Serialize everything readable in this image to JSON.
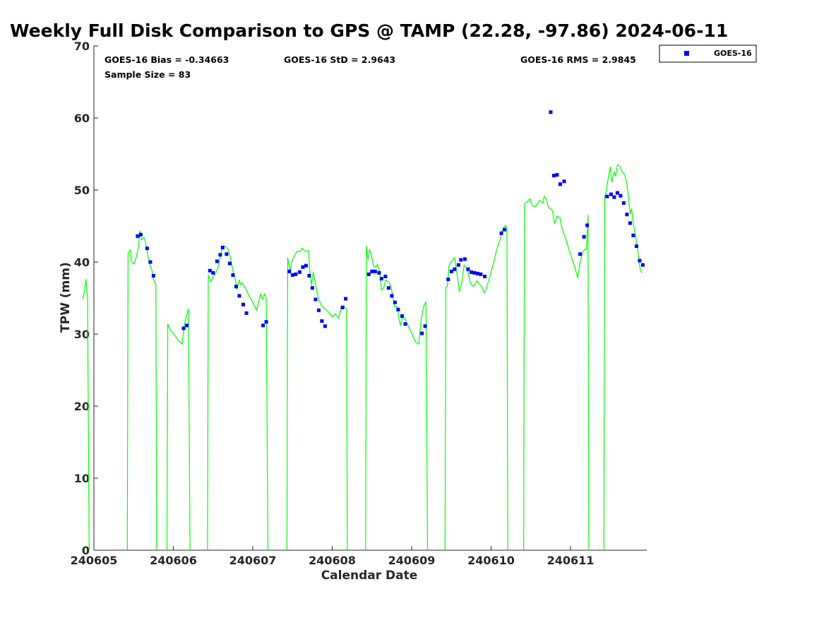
{
  "chart_data": {
    "type": "scatter",
    "title": "Weekly Full Disk Comparison to GPS @ TAMP (22.28, -97.86) 2024-06-11",
    "xlabel": "Calendar Date",
    "ylabel": "TPW (mm)",
    "xlim": [
      0,
      6.95
    ],
    "ylim": [
      0,
      70
    ],
    "yticks": [
      0,
      10,
      20,
      30,
      40,
      50,
      60,
      70
    ],
    "xticks": [
      {
        "pos": 0,
        "label": "240605"
      },
      {
        "pos": 1,
        "label": "240606"
      },
      {
        "pos": 2,
        "label": "240607"
      },
      {
        "pos": 3,
        "label": "240608"
      },
      {
        "pos": 4,
        "label": "240609"
      },
      {
        "pos": 5,
        "label": "240610"
      },
      {
        "pos": 6,
        "label": "240611"
      }
    ],
    "legend": {
      "position": "top-right",
      "entries": [
        {
          "name": "GOES-16",
          "color": "#0000ff",
          "marker": "square"
        }
      ]
    },
    "stats": {
      "bias": "GOES-16 Bias = -0.34663",
      "std": "GOES-16 StD = 2.9643",
      "rms": "GOES-16 RMS = 2.9845",
      "sample": "Sample Size = 83"
    },
    "series": [
      {
        "name": "GOES-16",
        "kind": "scatter",
        "color": "#0000ff",
        "points": [
          [
            0.55,
            43.6
          ],
          [
            0.59,
            43.8
          ],
          [
            0.67,
            41.9
          ],
          [
            0.71,
            40.0
          ],
          [
            0.75,
            38.1
          ],
          [
            1.13,
            30.8
          ],
          [
            1.17,
            31.2
          ],
          [
            1.46,
            38.8
          ],
          [
            1.5,
            38.5
          ],
          [
            1.55,
            40.1
          ],
          [
            1.59,
            41.0
          ],
          [
            1.62,
            42.0
          ],
          [
            1.67,
            41.1
          ],
          [
            1.71,
            39.8
          ],
          [
            1.75,
            38.2
          ],
          [
            1.79,
            36.6
          ],
          [
            1.83,
            35.3
          ],
          [
            1.88,
            34.1
          ],
          [
            1.92,
            32.9
          ],
          [
            2.13,
            31.2
          ],
          [
            2.17,
            31.7
          ],
          [
            2.46,
            38.7
          ],
          [
            2.5,
            38.2
          ],
          [
            2.54,
            38.3
          ],
          [
            2.59,
            38.6
          ],
          [
            2.63,
            39.3
          ],
          [
            2.67,
            39.5
          ],
          [
            2.71,
            38.1
          ],
          [
            2.75,
            36.4
          ],
          [
            2.79,
            34.8
          ],
          [
            2.83,
            33.3
          ],
          [
            2.87,
            31.8
          ],
          [
            2.91,
            31.1
          ],
          [
            3.13,
            33.7
          ],
          [
            3.17,
            34.9
          ],
          [
            3.46,
            38.3
          ],
          [
            3.5,
            38.7
          ],
          [
            3.54,
            38.7
          ],
          [
            3.59,
            38.5
          ],
          [
            3.62,
            37.7
          ],
          [
            3.67,
            38.0
          ],
          [
            3.71,
            36.4
          ],
          [
            3.75,
            35.3
          ],
          [
            3.79,
            34.4
          ],
          [
            3.83,
            33.4
          ],
          [
            3.88,
            32.5
          ],
          [
            3.92,
            31.4
          ],
          [
            4.13,
            30.1
          ],
          [
            4.17,
            31.1
          ],
          [
            4.46,
            37.6
          ],
          [
            4.5,
            38.7
          ],
          [
            4.54,
            39.0
          ],
          [
            4.59,
            39.6
          ],
          [
            4.62,
            40.3
          ],
          [
            4.67,
            40.4
          ],
          [
            4.71,
            39.0
          ],
          [
            4.75,
            38.6
          ],
          [
            4.79,
            38.5
          ],
          [
            4.83,
            38.4
          ],
          [
            4.87,
            38.3
          ],
          [
            4.92,
            38.0
          ],
          [
            5.13,
            44.0
          ],
          [
            5.17,
            44.5
          ],
          [
            5.75,
            60.8
          ],
          [
            5.79,
            52.0
          ],
          [
            5.83,
            52.1
          ],
          [
            5.87,
            50.8
          ],
          [
            5.92,
            51.2
          ],
          [
            6.12,
            41.1
          ],
          [
            6.17,
            43.5
          ],
          [
            6.21,
            45.1
          ],
          [
            6.46,
            49.1
          ],
          [
            6.51,
            49.4
          ],
          [
            6.55,
            49.0
          ],
          [
            6.59,
            49.6
          ],
          [
            6.63,
            49.2
          ],
          [
            6.67,
            48.2
          ],
          [
            6.71,
            46.6
          ],
          [
            6.75,
            45.4
          ],
          [
            6.79,
            43.7
          ],
          [
            6.83,
            42.2
          ],
          [
            6.87,
            40.2
          ],
          [
            6.91,
            39.6
          ]
        ]
      },
      {
        "name": "",
        "kind": "line",
        "color": "#00ff00",
        "segments": [
          [
            [
              -0.14,
              34.9
            ],
            [
              -0.12,
              35.8
            ],
            [
              -0.1,
              37.6
            ],
            [
              -0.09,
              36.0
            ],
            [
              -0.08,
              35.3
            ],
            [
              -0.06,
              0
            ]
          ],
          [
            [
              0.42,
              0
            ],
            [
              0.43,
              41.2
            ],
            [
              0.46,
              41.7
            ],
            [
              0.47,
              40.1
            ],
            [
              0.5,
              39.7
            ],
            [
              0.53,
              40.5
            ],
            [
              0.56,
              42.1
            ],
            [
              0.58,
              44.3
            ],
            [
              0.6,
              43.1
            ],
            [
              0.63,
              43.4
            ],
            [
              0.65,
              42.7
            ],
            [
              0.67,
              41.4
            ],
            [
              0.7,
              39.7
            ],
            [
              0.73,
              38.9
            ],
            [
              0.75,
              37.6
            ],
            [
              0.78,
              36.8
            ],
            [
              0.79,
              0
            ]
          ],
          [
            [
              0.92,
              0
            ],
            [
              0.93,
              31.4
            ],
            [
              0.96,
              30.6
            ],
            [
              1.0,
              30.1
            ],
            [
              1.04,
              29.5
            ],
            [
              1.08,
              28.9
            ],
            [
              1.11,
              28.6
            ],
            [
              1.14,
              31.4
            ],
            [
              1.17,
              32.7
            ],
            [
              1.19,
              33.5
            ],
            [
              1.21,
              0
            ]
          ],
          [
            [
              1.43,
              0
            ],
            [
              1.44,
              38.2
            ],
            [
              1.47,
              37.3
            ],
            [
              1.5,
              37.9
            ],
            [
              1.54,
              38.6
            ],
            [
              1.57,
              39.5
            ],
            [
              1.6,
              41.3
            ],
            [
              1.63,
              42.3
            ],
            [
              1.66,
              42.1
            ],
            [
              1.69,
              41.8
            ],
            [
              1.72,
              40.6
            ],
            [
              1.75,
              38.8
            ],
            [
              1.78,
              37.6
            ],
            [
              1.8,
              36.2
            ],
            [
              1.83,
              37.5
            ],
            [
              1.85,
              36.8
            ],
            [
              1.87,
              37.1
            ],
            [
              1.91,
              36.3
            ],
            [
              1.95,
              35.4
            ],
            [
              2.0,
              34.4
            ],
            [
              2.05,
              33.3
            ],
            [
              2.08,
              34.8
            ],
            [
              2.1,
              35.6
            ],
            [
              2.12,
              34.8
            ],
            [
              2.15,
              35.6
            ],
            [
              2.17,
              35.0
            ],
            [
              2.19,
              0
            ]
          ],
          [
            [
              2.43,
              0
            ],
            [
              2.44,
              40.6
            ],
            [
              2.47,
              38.7
            ],
            [
              2.49,
              40.0
            ],
            [
              2.52,
              40.8
            ],
            [
              2.56,
              41.5
            ],
            [
              2.59,
              41.4
            ],
            [
              2.62,
              41.9
            ],
            [
              2.66,
              41.5
            ],
            [
              2.7,
              41.6
            ],
            [
              2.72,
              38.6
            ],
            [
              2.74,
              36.8
            ],
            [
              2.76,
              38.6
            ],
            [
              2.79,
              36.9
            ],
            [
              2.82,
              35.2
            ],
            [
              2.86,
              34.0
            ],
            [
              2.9,
              33.6
            ],
            [
              2.95,
              33.1
            ],
            [
              3.0,
              32.4
            ],
            [
              3.04,
              32.8
            ],
            [
              3.08,
              32.2
            ],
            [
              3.11,
              33.5
            ],
            [
              3.15,
              33.8
            ],
            [
              3.18,
              33.5
            ],
            [
              3.19,
              0
            ]
          ],
          [
            [
              3.42,
              0
            ],
            [
              3.43,
              42.2
            ],
            [
              3.45,
              40.4
            ],
            [
              3.47,
              41.7
            ],
            [
              3.49,
              41.2
            ],
            [
              3.52,
              39.4
            ],
            [
              3.55,
              39.3
            ],
            [
              3.57,
              39.7
            ],
            [
              3.6,
              38.5
            ],
            [
              3.62,
              36.1
            ],
            [
              3.65,
              36.4
            ],
            [
              3.67,
              37.5
            ],
            [
              3.71,
              37.3
            ],
            [
              3.74,
              36.6
            ],
            [
              3.77,
              34.8
            ],
            [
              3.79,
              33.7
            ],
            [
              3.82,
              33.8
            ],
            [
              3.84,
              32.2
            ],
            [
              3.86,
              31.2
            ],
            [
              3.89,
              32.6
            ],
            [
              3.93,
              31.8
            ],
            [
              3.97,
              30.8
            ],
            [
              4.01,
              29.9
            ],
            [
              4.05,
              28.9
            ],
            [
              4.09,
              28.6
            ],
            [
              4.12,
              32.1
            ],
            [
              4.15,
              33.8
            ],
            [
              4.18,
              34.5
            ],
            [
              4.2,
              0
            ]
          ],
          [
            [
              4.42,
              0
            ],
            [
              4.43,
              36.5
            ],
            [
              4.45,
              36.6
            ],
            [
              4.47,
              39.5
            ],
            [
              4.5,
              40.1
            ],
            [
              4.54,
              40.6
            ],
            [
              4.57,
              38.5
            ],
            [
              4.6,
              35.9
            ],
            [
              4.63,
              37.0
            ],
            [
              4.66,
              39.6
            ],
            [
              4.7,
              39.0
            ],
            [
              4.74,
              37.0
            ],
            [
              4.78,
              36.6
            ],
            [
              4.82,
              37.4
            ],
            [
              4.86,
              36.8
            ],
            [
              4.89,
              36.5
            ],
            [
              4.91,
              35.7
            ],
            [
              4.94,
              36.3
            ],
            [
              4.98,
              37.9
            ],
            [
              5.03,
              39.8
            ],
            [
              5.07,
              41.7
            ],
            [
              5.11,
              43.0
            ],
            [
              5.15,
              44.6
            ],
            [
              5.18,
              45.1
            ],
            [
              5.2,
              44.7
            ],
            [
              5.21,
              0
            ]
          ],
          [
            [
              5.41,
              0
            ],
            [
              5.42,
              48.1
            ],
            [
              5.45,
              48.3
            ],
            [
              5.49,
              48.8
            ],
            [
              5.52,
              47.8
            ],
            [
              5.56,
              47.7
            ],
            [
              5.59,
              48.2
            ],
            [
              5.61,
              48.6
            ],
            [
              5.65,
              48.2
            ],
            [
              5.67,
              49.1
            ],
            [
              5.7,
              48.7
            ],
            [
              5.72,
              47.6
            ],
            [
              5.77,
              47.2
            ],
            [
              5.8,
              45.3
            ],
            [
              5.83,
              46.4
            ],
            [
              5.87,
              46.1
            ],
            [
              5.89,
              44.8
            ],
            [
              5.93,
              43.5
            ],
            [
              5.96,
              42.5
            ],
            [
              6.0,
              41.1
            ],
            [
              6.05,
              39.4
            ],
            [
              6.09,
              37.8
            ],
            [
              6.12,
              39.8
            ],
            [
              6.15,
              41.3
            ],
            [
              6.18,
              41.8
            ],
            [
              6.2,
              41.7
            ],
            [
              6.22,
              46.5
            ],
            [
              6.23,
              0
            ]
          ],
          [
            [
              6.42,
              0
            ],
            [
              6.43,
              48.9
            ],
            [
              6.45,
              49.9
            ],
            [
              6.48,
              52.0
            ],
            [
              6.5,
              53.2
            ],
            [
              6.52,
              51.1
            ],
            [
              6.55,
              52.5
            ],
            [
              6.57,
              51.9
            ],
            [
              6.59,
              53.5
            ],
            [
              6.62,
              53.3
            ],
            [
              6.65,
              52.5
            ],
            [
              6.68,
              52.2
            ],
            [
              6.71,
              50.9
            ],
            [
              6.73,
              49.0
            ],
            [
              6.75,
              46.7
            ],
            [
              6.77,
              47.4
            ],
            [
              6.79,
              45.3
            ],
            [
              6.82,
              43.6
            ],
            [
              6.85,
              41.3
            ],
            [
              6.88,
              38.8
            ],
            [
              6.9,
              38.5
            ]
          ]
        ]
      }
    ]
  }
}
